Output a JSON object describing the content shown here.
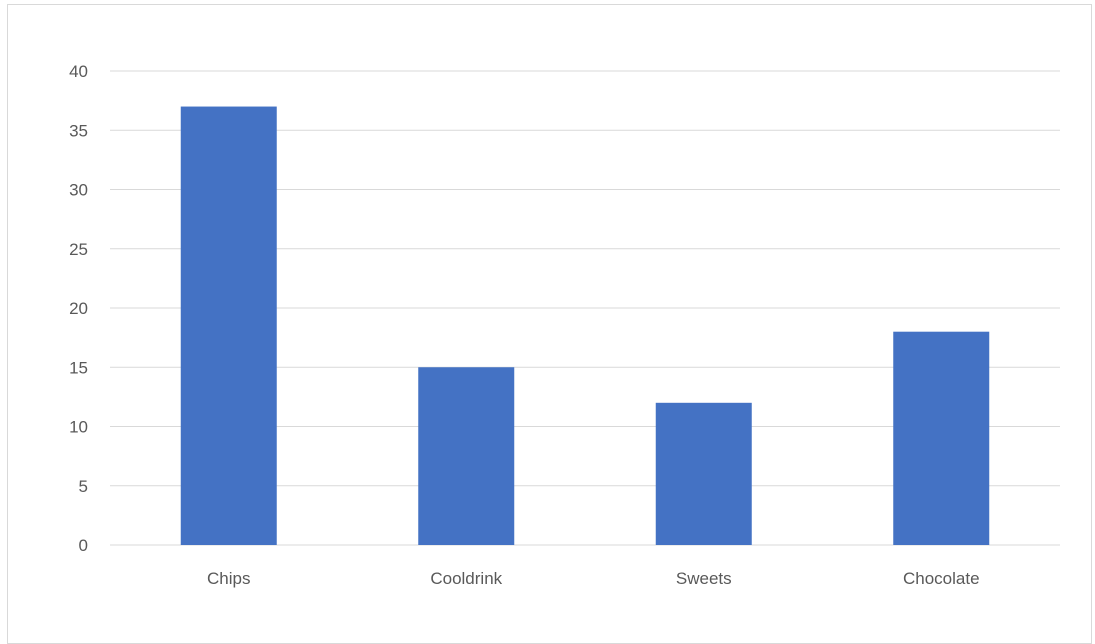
{
  "chart_data": {
    "type": "bar",
    "title": "",
    "xlabel": "",
    "ylabel": "",
    "categories": [
      "Chips",
      "Cooldrink",
      "Sweets",
      "Chocolate"
    ],
    "values": [
      37,
      15,
      12,
      18
    ],
    "ylim": [
      0,
      40
    ],
    "yticks": [
      0,
      5,
      10,
      15,
      20,
      25,
      30,
      35,
      40
    ],
    "grid": "horizontal",
    "legend": "none",
    "bar_color": "#4472C4",
    "grid_color": "#d9d9d9",
    "label_color": "#595959"
  }
}
